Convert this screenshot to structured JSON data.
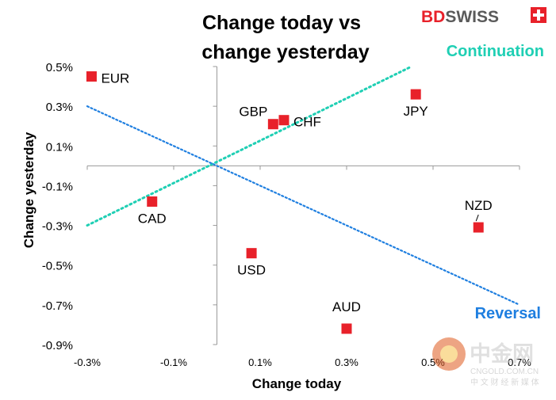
{
  "brand": {
    "name_bd": "BD",
    "name_swiss": "SWISS",
    "colors": {
      "bd": "#e8212a",
      "swiss": "#5a5a5a"
    }
  },
  "watermark": {
    "main": "中金网",
    "url": "CNGOLD.COM.CN",
    "sub": "中 文 财 经 新 媒 体"
  },
  "chart_data": {
    "type": "scatter",
    "title_lines": [
      "Change today vs",
      "change yesterday"
    ],
    "xlabel": "Change today",
    "ylabel": "Change yesterday",
    "xlim": [
      -0.3,
      0.7
    ],
    "ylim": [
      -0.9,
      0.5
    ],
    "x_ticks": [
      -0.3,
      -0.1,
      0.1,
      0.3,
      0.5,
      0.7
    ],
    "x_tick_labels": [
      "-0.3%",
      "-0.1%",
      "0.1%",
      "0.3%",
      "0.5%",
      "0.7%"
    ],
    "y_ticks": [
      0.5,
      0.3,
      0.1,
      -0.1,
      -0.3,
      -0.5,
      -0.7,
      -0.9
    ],
    "y_tick_labels": [
      "0.5%",
      "0.3%",
      "0.1%",
      "-0.1%",
      "-0.3%",
      "-0.5%",
      "-0.7%",
      "-0.9%"
    ],
    "points": [
      {
        "label": "EUR",
        "x": -0.29,
        "y": 0.45,
        "label_pos": "right"
      },
      {
        "label": "GBP",
        "x": 0.13,
        "y": 0.21,
        "label_pos": "above-left"
      },
      {
        "label": "CHF",
        "x": 0.155,
        "y": 0.23,
        "label_pos": "right"
      },
      {
        "label": "JPY",
        "x": 0.46,
        "y": 0.36,
        "label_pos": "below"
      },
      {
        "label": "CAD",
        "x": -0.15,
        "y": -0.18,
        "label_pos": "below"
      },
      {
        "label": "NZD",
        "x": 0.605,
        "y": -0.31,
        "label_pos": "above"
      },
      {
        "label": "USD",
        "x": 0.08,
        "y": -0.44,
        "label_pos": "below"
      },
      {
        "label": "AUD",
        "x": 0.3,
        "y": -0.82,
        "label_pos": "above"
      }
    ],
    "trend_lines": [
      {
        "name": "Continuation",
        "x": [
          -0.3,
          0.45
        ],
        "y": [
          -0.3,
          0.5
        ],
        "color": "#1fcfb4"
      },
      {
        "name": "Reversal",
        "x": [
          -0.3,
          0.7
        ],
        "y": [
          0.3,
          -0.7
        ],
        "color": "#1f7fe0"
      }
    ],
    "marker_color": "#e8212a",
    "grid": false,
    "legend": "none"
  }
}
